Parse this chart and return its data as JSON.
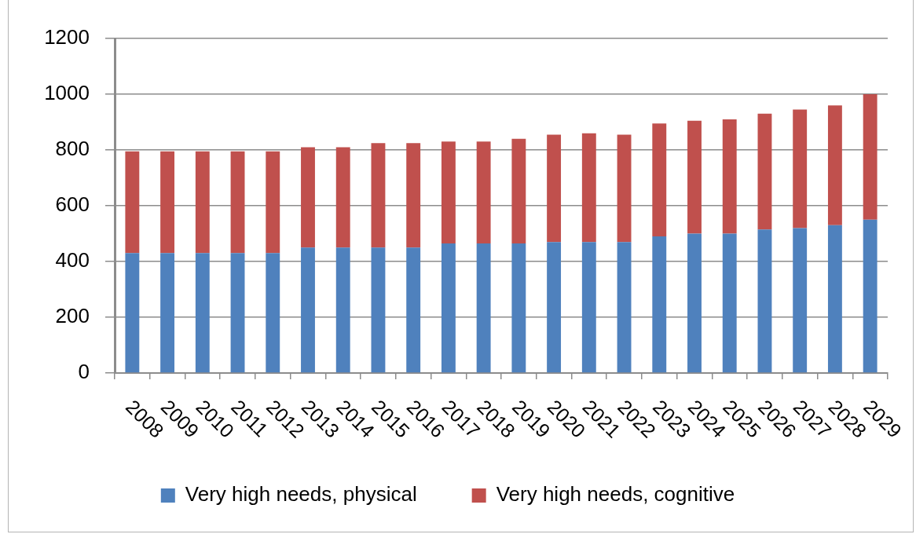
{
  "chart_data": {
    "type": "bar",
    "stacked": true,
    "categories": [
      "2008",
      "2009",
      "2010",
      "2011",
      "2012",
      "2013",
      "2014",
      "2015",
      "2016",
      "2017",
      "2018",
      "2019",
      "2020",
      "2021",
      "2022",
      "2023",
      "2024",
      "2025",
      "2026",
      "2027",
      "2028",
      "2029"
    ],
    "series": [
      {
        "name": "Very high needs, physical",
        "color": "#4f81bd",
        "values": [
          430,
          430,
          430,
          430,
          430,
          450,
          450,
          450,
          450,
          465,
          465,
          465,
          470,
          470,
          470,
          490,
          500,
          500,
          515,
          520,
          530,
          550
        ]
      },
      {
        "name": "Very high needs, cognitive",
        "color": "#c0504d",
        "values": [
          365,
          365,
          365,
          365,
          365,
          360,
          360,
          375,
          375,
          365,
          365,
          375,
          385,
          390,
          385,
          405,
          405,
          410,
          415,
          425,
          430,
          450
        ]
      }
    ],
    "ylim": [
      0,
      1200
    ],
    "yticks": [
      0,
      200,
      400,
      600,
      800,
      1000,
      1200
    ],
    "grid": "y",
    "legend": "bottom"
  }
}
